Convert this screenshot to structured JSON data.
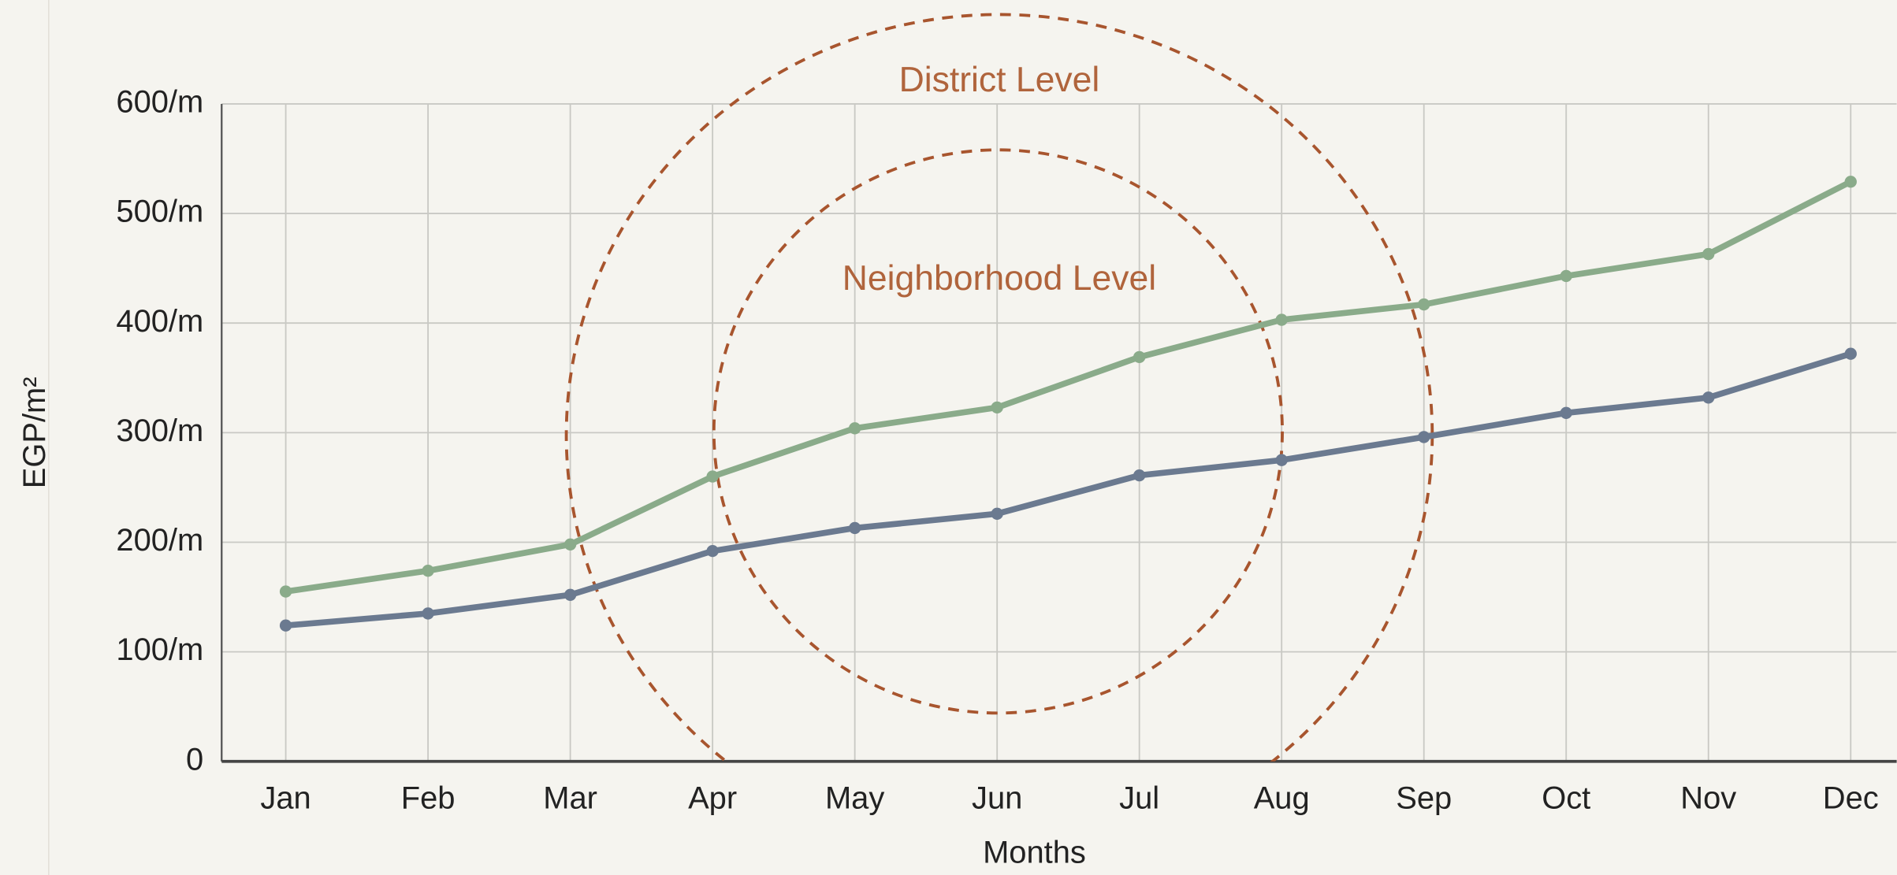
{
  "chart_data": {
    "type": "line",
    "y_label": "EGP/m²",
    "x_label": "Months",
    "annotations": [
      "District Level",
      "Neighborhood Level"
    ],
    "categories": [
      "Jan",
      "Feb",
      "Mar",
      "Apr",
      "May",
      "Jun",
      "Jul",
      "Aug",
      "Sep",
      "Oct",
      "Nov",
      "Dec"
    ],
    "series": [
      {
        "color": "#8aab8a",
        "values": [
          155,
          174,
          198,
          260,
          304,
          323,
          369,
          403,
          417,
          443,
          463,
          529
        ]
      },
      {
        "color": "#6b7a90",
        "values": [
          124,
          135,
          152,
          192,
          213,
          226,
          261,
          275,
          296,
          318,
          332,
          372
        ]
      }
    ],
    "ylim": [
      0,
      600
    ],
    "yticks": [
      0,
      {
        "value": 100,
        "label": "100/m"
      },
      {
        "value": 200,
        "label": "200/m"
      },
      {
        "value": 300,
        "label": "300/m"
      },
      {
        "value": 400,
        "label": "400/m"
      },
      {
        "value": 500,
        "label": "500/m"
      },
      {
        "value": 600,
        "label": "600/m"
      }
    ],
    "grid": true
  }
}
